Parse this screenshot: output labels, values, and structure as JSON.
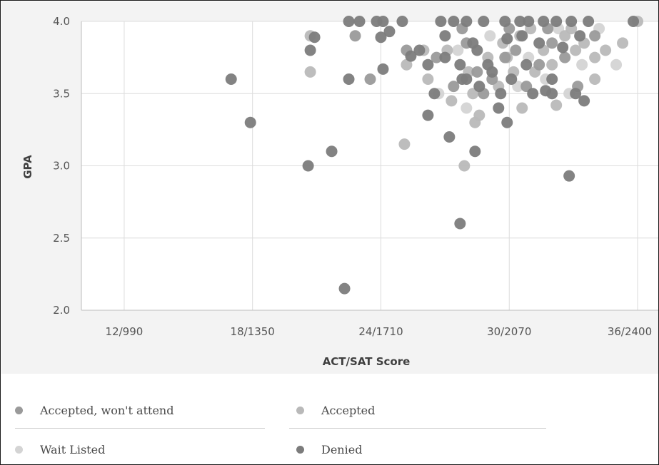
{
  "chart_data": {
    "type": "scatter",
    "xlabel": "ACT/SAT Score",
    "ylabel": "GPA",
    "xlim": [
      10,
      37
    ],
    "ylim": [
      2.0,
      4.0
    ],
    "x_ticks": [
      {
        "value": 12,
        "label": "12/990"
      },
      {
        "value": 18,
        "label": "18/1350"
      },
      {
        "value": 24,
        "label": "24/1710"
      },
      {
        "value": 30,
        "label": "30/2070"
      },
      {
        "value": 36,
        "label": "36/2400"
      }
    ],
    "y_ticks": [
      {
        "value": 2.0,
        "label": "2.0"
      },
      {
        "value": 2.5,
        "label": "2.5"
      },
      {
        "value": 3.0,
        "label": "3.0"
      },
      {
        "value": 3.5,
        "label": "3.5"
      },
      {
        "value": 4.0,
        "label": "4.0"
      }
    ],
    "grid": true,
    "legend_position": "bottom",
    "series": [
      {
        "name": "Accepted, won't attend",
        "color": "#9a9a9a",
        "points": [
          [
            22.8,
            3.9
          ],
          [
            23.5,
            3.6
          ],
          [
            25.2,
            3.8
          ],
          [
            26.6,
            3.75
          ],
          [
            27.4,
            3.55
          ],
          [
            28.0,
            3.85
          ],
          [
            28.5,
            3.65
          ],
          [
            29.2,
            3.6
          ],
          [
            29.8,
            3.75
          ],
          [
            30.3,
            3.8
          ],
          [
            30.8,
            3.55
          ],
          [
            31.4,
            3.7
          ],
          [
            32.0,
            3.85
          ],
          [
            32.6,
            3.75
          ],
          [
            33.2,
            3.55
          ],
          [
            34.0,
            3.9
          ],
          [
            30.0,
            3.95
          ],
          [
            28.8,
            3.5
          ],
          [
            27.8,
            3.95
          ],
          [
            31.8,
            3.95
          ]
        ]
      },
      {
        "name": "Accepted",
        "color": "#b9b9b9",
        "points": [
          [
            20.7,
            3.9
          ],
          [
            20.7,
            3.65
          ],
          [
            25.1,
            3.15
          ],
          [
            25.2,
            3.7
          ],
          [
            26.0,
            3.8
          ],
          [
            26.2,
            3.6
          ],
          [
            27.1,
            3.8
          ],
          [
            27.3,
            3.45
          ],
          [
            27.9,
            3.0
          ],
          [
            28.1,
            3.65
          ],
          [
            28.4,
            3.3
          ],
          [
            28.6,
            3.35
          ],
          [
            29.0,
            3.75
          ],
          [
            29.5,
            3.55
          ],
          [
            29.7,
            3.85
          ],
          [
            30.2,
            3.65
          ],
          [
            30.5,
            3.9
          ],
          [
            30.6,
            3.4
          ],
          [
            31.2,
            3.65
          ],
          [
            31.6,
            3.8
          ],
          [
            32.0,
            3.7
          ],
          [
            32.2,
            3.42
          ],
          [
            32.6,
            3.9
          ],
          [
            33.1,
            3.8
          ],
          [
            33.5,
            3.85
          ],
          [
            34.0,
            3.6
          ],
          [
            34.0,
            3.75
          ],
          [
            34.5,
            3.8
          ],
          [
            35.3,
            3.85
          ],
          [
            36.0,
            4.0
          ],
          [
            28.3,
            3.5
          ],
          [
            29.9,
            3.75
          ],
          [
            31.0,
            3.95
          ],
          [
            32.9,
            3.95
          ]
        ]
      },
      {
        "name": "Wait Listed",
        "color": "#d4d4d4",
        "points": [
          [
            27.6,
            3.8
          ],
          [
            28.0,
            3.4
          ],
          [
            29.1,
            3.9
          ],
          [
            30.9,
            3.75
          ],
          [
            31.7,
            3.6
          ],
          [
            32.3,
            3.95
          ],
          [
            33.4,
            3.7
          ],
          [
            34.2,
            3.95
          ],
          [
            35.0,
            3.7
          ],
          [
            26.7,
            3.5
          ],
          [
            30.4,
            3.55
          ],
          [
            32.8,
            3.5
          ]
        ]
      },
      {
        "name": "Denied",
        "color": "#7c7c7c",
        "points": [
          [
            17.0,
            3.6
          ],
          [
            17.9,
            3.3
          ],
          [
            20.6,
            3.0
          ],
          [
            20.7,
            3.8
          ],
          [
            20.9,
            3.89
          ],
          [
            21.7,
            3.1
          ],
          [
            22.3,
            2.15
          ],
          [
            22.5,
            4.0
          ],
          [
            22.5,
            3.6
          ],
          [
            23.0,
            4.0
          ],
          [
            23.8,
            4.0
          ],
          [
            24.0,
            3.89
          ],
          [
            24.1,
            4.0
          ],
          [
            24.1,
            3.67
          ],
          [
            24.4,
            3.93
          ],
          [
            25.0,
            4.0
          ],
          [
            25.4,
            3.76
          ],
          [
            25.8,
            3.8
          ],
          [
            26.2,
            3.7
          ],
          [
            26.2,
            3.35
          ],
          [
            26.5,
            3.5
          ],
          [
            26.8,
            4.0
          ],
          [
            27.0,
            3.9
          ],
          [
            27.0,
            3.75
          ],
          [
            27.2,
            3.2
          ],
          [
            27.4,
            4.0
          ],
          [
            27.7,
            2.6
          ],
          [
            27.7,
            3.7
          ],
          [
            27.8,
            3.6
          ],
          [
            28.0,
            3.6
          ],
          [
            28.0,
            4.0
          ],
          [
            28.3,
            3.85
          ],
          [
            28.4,
            3.1
          ],
          [
            28.5,
            3.8
          ],
          [
            28.6,
            3.55
          ],
          [
            28.8,
            4.0
          ],
          [
            29.0,
            3.7
          ],
          [
            29.2,
            3.65
          ],
          [
            29.5,
            3.4
          ],
          [
            29.6,
            3.5
          ],
          [
            29.8,
            4.0
          ],
          [
            29.9,
            3.88
          ],
          [
            29.9,
            3.3
          ],
          [
            30.1,
            3.6
          ],
          [
            30.5,
            4.0
          ],
          [
            30.6,
            3.9
          ],
          [
            30.8,
            3.7
          ],
          [
            30.9,
            4.0
          ],
          [
            31.1,
            3.5
          ],
          [
            31.4,
            3.85
          ],
          [
            31.6,
            4.0
          ],
          [
            31.7,
            3.52
          ],
          [
            32.0,
            3.5
          ],
          [
            32.0,
            3.6
          ],
          [
            32.2,
            4.0
          ],
          [
            32.5,
            3.82
          ],
          [
            32.8,
            2.93
          ],
          [
            32.9,
            4.0
          ],
          [
            33.1,
            3.5
          ],
          [
            33.3,
            3.9
          ],
          [
            33.5,
            3.45
          ],
          [
            33.7,
            4.0
          ],
          [
            35.8,
            4.0
          ]
        ]
      }
    ]
  },
  "legend": {
    "items": [
      {
        "label": "Accepted, won't attend",
        "color": "#9a9a9a"
      },
      {
        "label": "Accepted",
        "color": "#b9b9b9"
      },
      {
        "label": "Wait Listed",
        "color": "#d4d4d4"
      },
      {
        "label": "Denied",
        "color": "#7c7c7c"
      }
    ]
  }
}
